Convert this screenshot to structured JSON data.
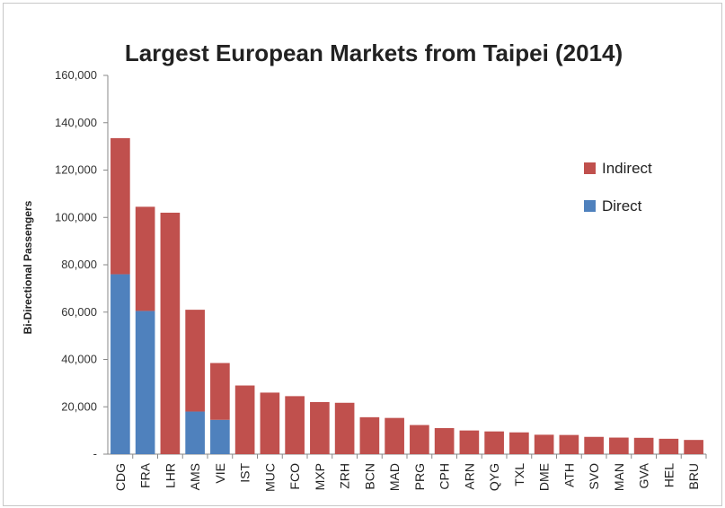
{
  "chart_data": {
    "type": "bar",
    "stacked": true,
    "title": "Largest European Markets from Taipei (2014)",
    "xlabel": "",
    "ylabel": "Bi-Directional Passengers",
    "ylim": [
      0,
      160000
    ],
    "yticks": [
      "-",
      "20,000",
      "40,000",
      "60,000",
      "80,000",
      "100,000",
      "120,000",
      "140,000",
      "160,000"
    ],
    "grid": false,
    "legend_position": "right",
    "categories": [
      "CDG",
      "FRA",
      "LHR",
      "AMS",
      "VIE",
      "IST",
      "MUC",
      "FCO",
      "MXP",
      "ZRH",
      "BCN",
      "MAD",
      "PRG",
      "CPH",
      "ARN",
      "QYG",
      "TXL",
      "DME",
      "ATH",
      "SVO",
      "MAN",
      "GVA",
      "HEL",
      "BRU"
    ],
    "series": [
      {
        "name": "Direct",
        "color": "#4f81bd",
        "values": [
          76000,
          60500,
          0,
          18000,
          14500,
          0,
          0,
          0,
          0,
          0,
          0,
          0,
          0,
          0,
          0,
          0,
          0,
          0,
          0,
          0,
          0,
          0,
          0,
          0
        ]
      },
      {
        "name": "Indirect",
        "color": "#c0504d",
        "values": [
          57500,
          44000,
          102000,
          43000,
          24000,
          29000,
          26000,
          24500,
          22000,
          21700,
          15600,
          15300,
          12300,
          11000,
          10000,
          9600,
          9200,
          8200,
          8100,
          7300,
          7000,
          6900,
          6500,
          6000
        ]
      }
    ]
  }
}
